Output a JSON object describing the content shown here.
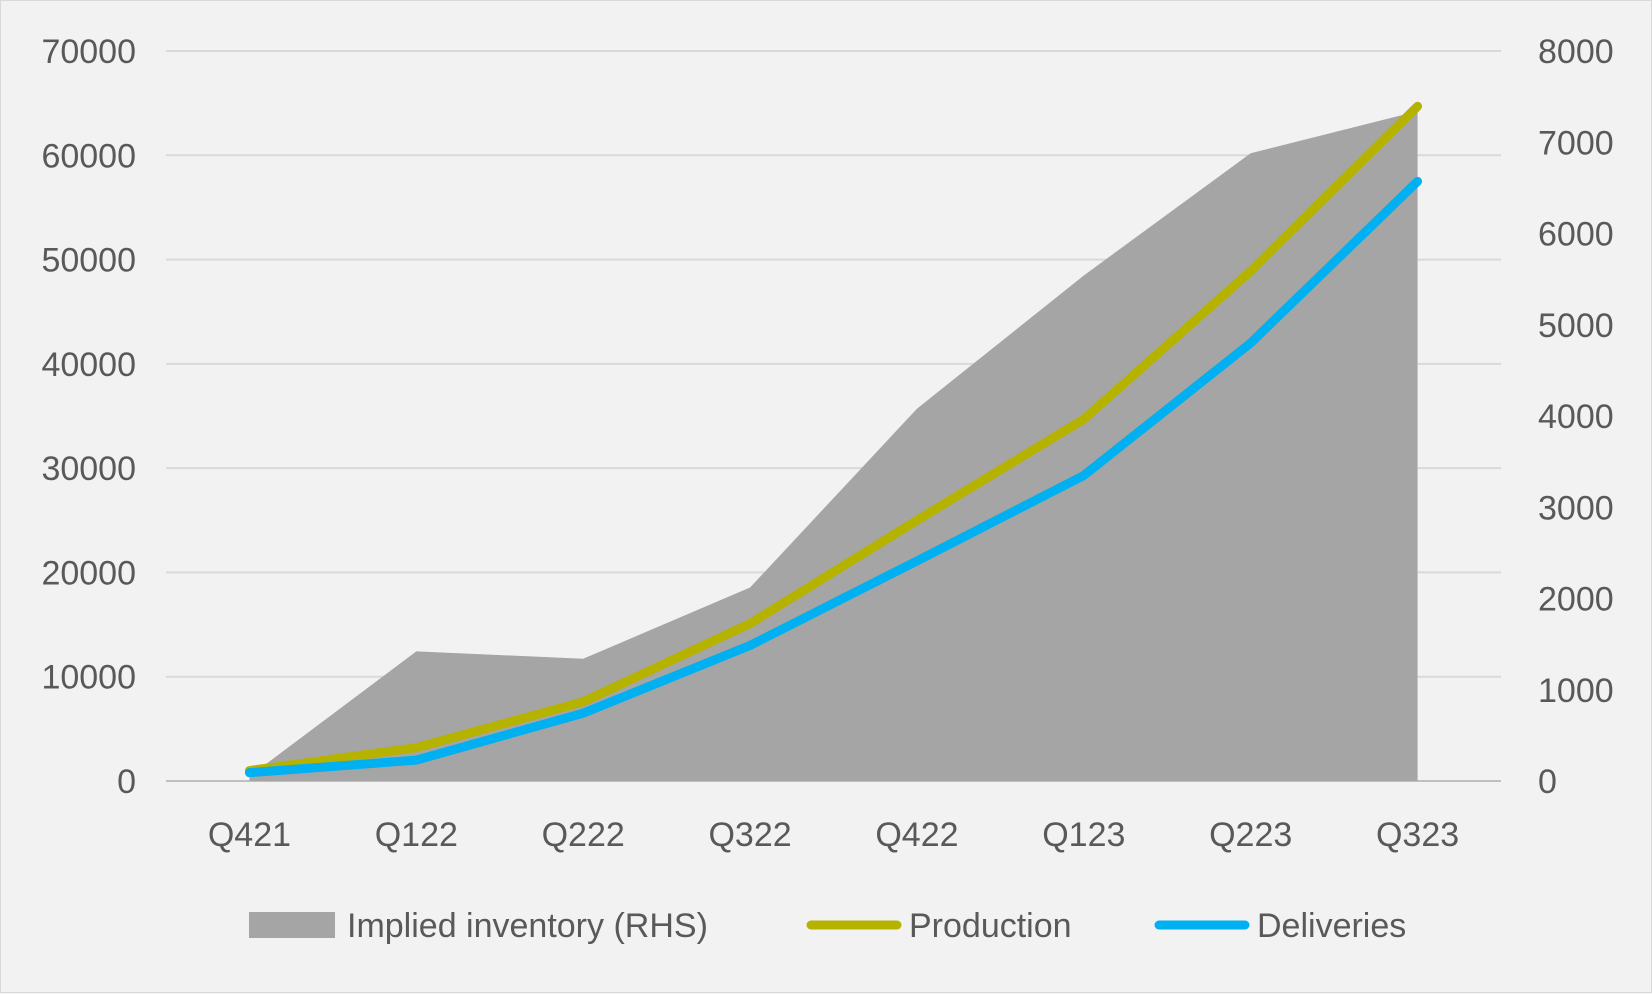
{
  "chart_data": {
    "type": "line",
    "categories": [
      "Q421",
      "Q122",
      "Q222",
      "Q322",
      "Q422",
      "Q123",
      "Q223",
      "Q323"
    ],
    "y_left": {
      "ylim": [
        0,
        70000
      ],
      "ticks": [
        0,
        10000,
        20000,
        30000,
        40000,
        50000,
        60000,
        70000
      ]
    },
    "y_right": {
      "ylim": [
        0,
        8000
      ],
      "ticks": [
        0,
        1000,
        2000,
        3000,
        4000,
        5000,
        6000,
        7000,
        8000
      ]
    },
    "grid": true,
    "legend_position": "bottom",
    "series": [
      {
        "name": "Implied inventory (RHS)",
        "type": "area",
        "axis": "right",
        "color": "#a5a5a5",
        "values": [
          50,
          1420,
          1340,
          2120,
          4080,
          5540,
          6880,
          7340
        ]
      },
      {
        "name": "Production",
        "type": "line",
        "axis": "left",
        "color": "#b5b300",
        "values": [
          1000,
          3200,
          7600,
          15100,
          25000,
          34700,
          48900,
          64700
        ]
      },
      {
        "name": "Deliveries",
        "type": "line",
        "axis": "left",
        "color": "#00b0f0",
        "values": [
          800,
          2000,
          6500,
          13000,
          21100,
          29300,
          42000,
          57500
        ]
      }
    ]
  }
}
